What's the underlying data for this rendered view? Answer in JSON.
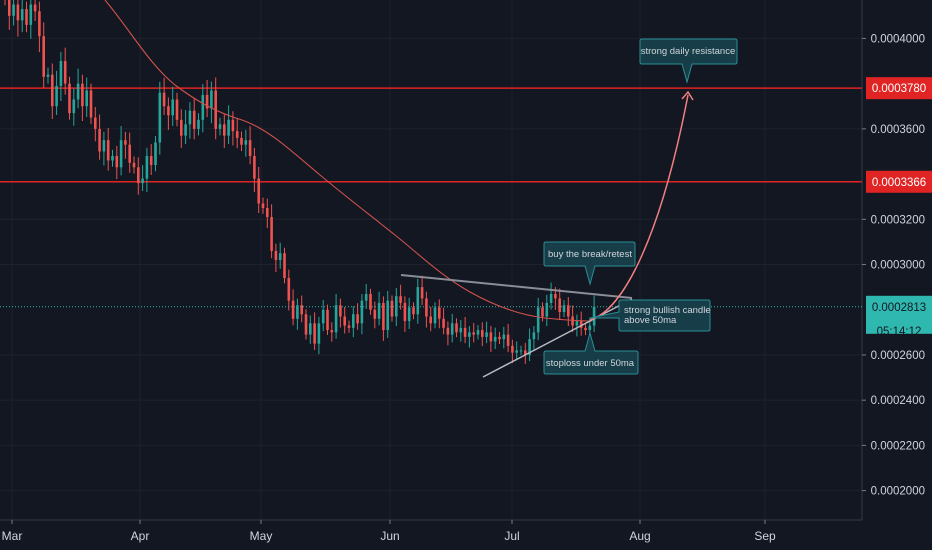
{
  "chart_data": {
    "type": "candlestick",
    "x_axis": {
      "tick_labels": [
        "Mar",
        "Apr",
        "May",
        "Jun",
        "Jul",
        "Aug",
        "Sep"
      ]
    },
    "y_axis": {
      "tick_labels": [
        "0.0004000",
        "0.0003600",
        "0.0003200",
        "0.0003000",
        "0.0002600",
        "0.0002400",
        "0.0002200",
        "0.0002000"
      ],
      "range": [
        0.000187,
        0.000417
      ]
    },
    "price_tag": {
      "value": "0.0002813",
      "countdown": "05:14:12",
      "price": 0.0002813
    },
    "hlines": [
      {
        "label": "0.0003780",
        "value": 0.000378
      },
      {
        "label": "0.0003366",
        "value": 0.0003366
      }
    ],
    "annotations": [
      {
        "text": "strong daily resistance"
      },
      {
        "text": "buy the break/retest"
      },
      {
        "text": "strong bullish candle above 50ma"
      },
      {
        "text": "stoploss under 50ma"
      }
    ],
    "candles_close": [
      0.000418,
      0.00041,
      0.000415,
      0.000408,
      0.000413,
      0.000406,
      0.000415,
      0.000412,
      0.000401,
      0.000383,
      0.000384,
      0.00037,
      0.000379,
      0.00039,
      0.00038,
      0.000367,
      0.000373,
      0.00038,
      0.00037,
      0.000377,
      0.000365,
      0.00036,
      0.00035,
      0.000355,
      0.000346,
      0.000348,
      0.000343,
      0.000355,
      0.000353,
      0.000345,
      0.000343,
      0.000336,
      0.000338,
      0.000348,
      0.000344,
      0.000354,
      0.000376,
      0.00037,
      0.000366,
      0.000373,
      0.000364,
      0.000357,
      0.000362,
      0.000368,
      0.00036,
      0.000364,
      0.000375,
      0.000369,
      0.000377,
      0.00036,
      0.000362,
      0.000357,
      0.000364,
      0.000359,
      0.000356,
      0.000353,
      0.000355,
      0.000348,
      0.000338,
      0.000327,
      0.000325,
      0.000321,
      0.000306,
      0.000302,
      0.000305,
      0.000294,
      0.000284,
      0.000276,
      0.000282,
      0.000278,
      0.000269,
      0.000274,
      0.000265,
      0.000274,
      0.00028,
      0.000271,
      0.00027,
      0.000282,
      0.000277,
      0.000273,
      0.000272,
      0.000278,
      0.000274,
      0.000284,
      0.000287,
      0.00028,
      0.000276,
      0.000283,
      0.000271,
      0.000284,
      0.000277,
      0.000286,
      0.000283,
      0.000275,
      0.000281,
      0.000278,
      0.00029,
      0.000285,
      0.000277,
      0.000274,
      0.000281,
      0.000276,
      0.000272,
      0.000269,
      0.000274,
      0.00027,
      0.000272,
      0.000268,
      0.00027,
      0.000269,
      0.000271,
      0.000268,
      0.00027,
      0.000266,
      0.000268,
      0.000267,
      0.000269,
      0.000264,
      0.000261,
      0.000262,
      0.000262,
      0.00026,
      0.000267,
      0.00027,
      0.000281,
      0.000277,
      0.000283,
      0.000287,
      0.000285,
      0.000279,
      0.000282,
      0.000277,
      0.000273,
      0.000275,
      0.000272,
      0.000271,
      0.000273,
      0.0002813
    ]
  }
}
